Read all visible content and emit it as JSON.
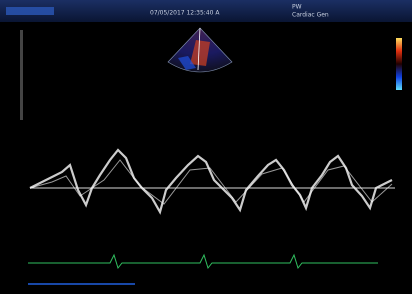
{
  "header": {
    "datetime": "07/05/2017 12:35:40 A",
    "mode": "PW",
    "preset": "Cardiac Gen"
  }
}
